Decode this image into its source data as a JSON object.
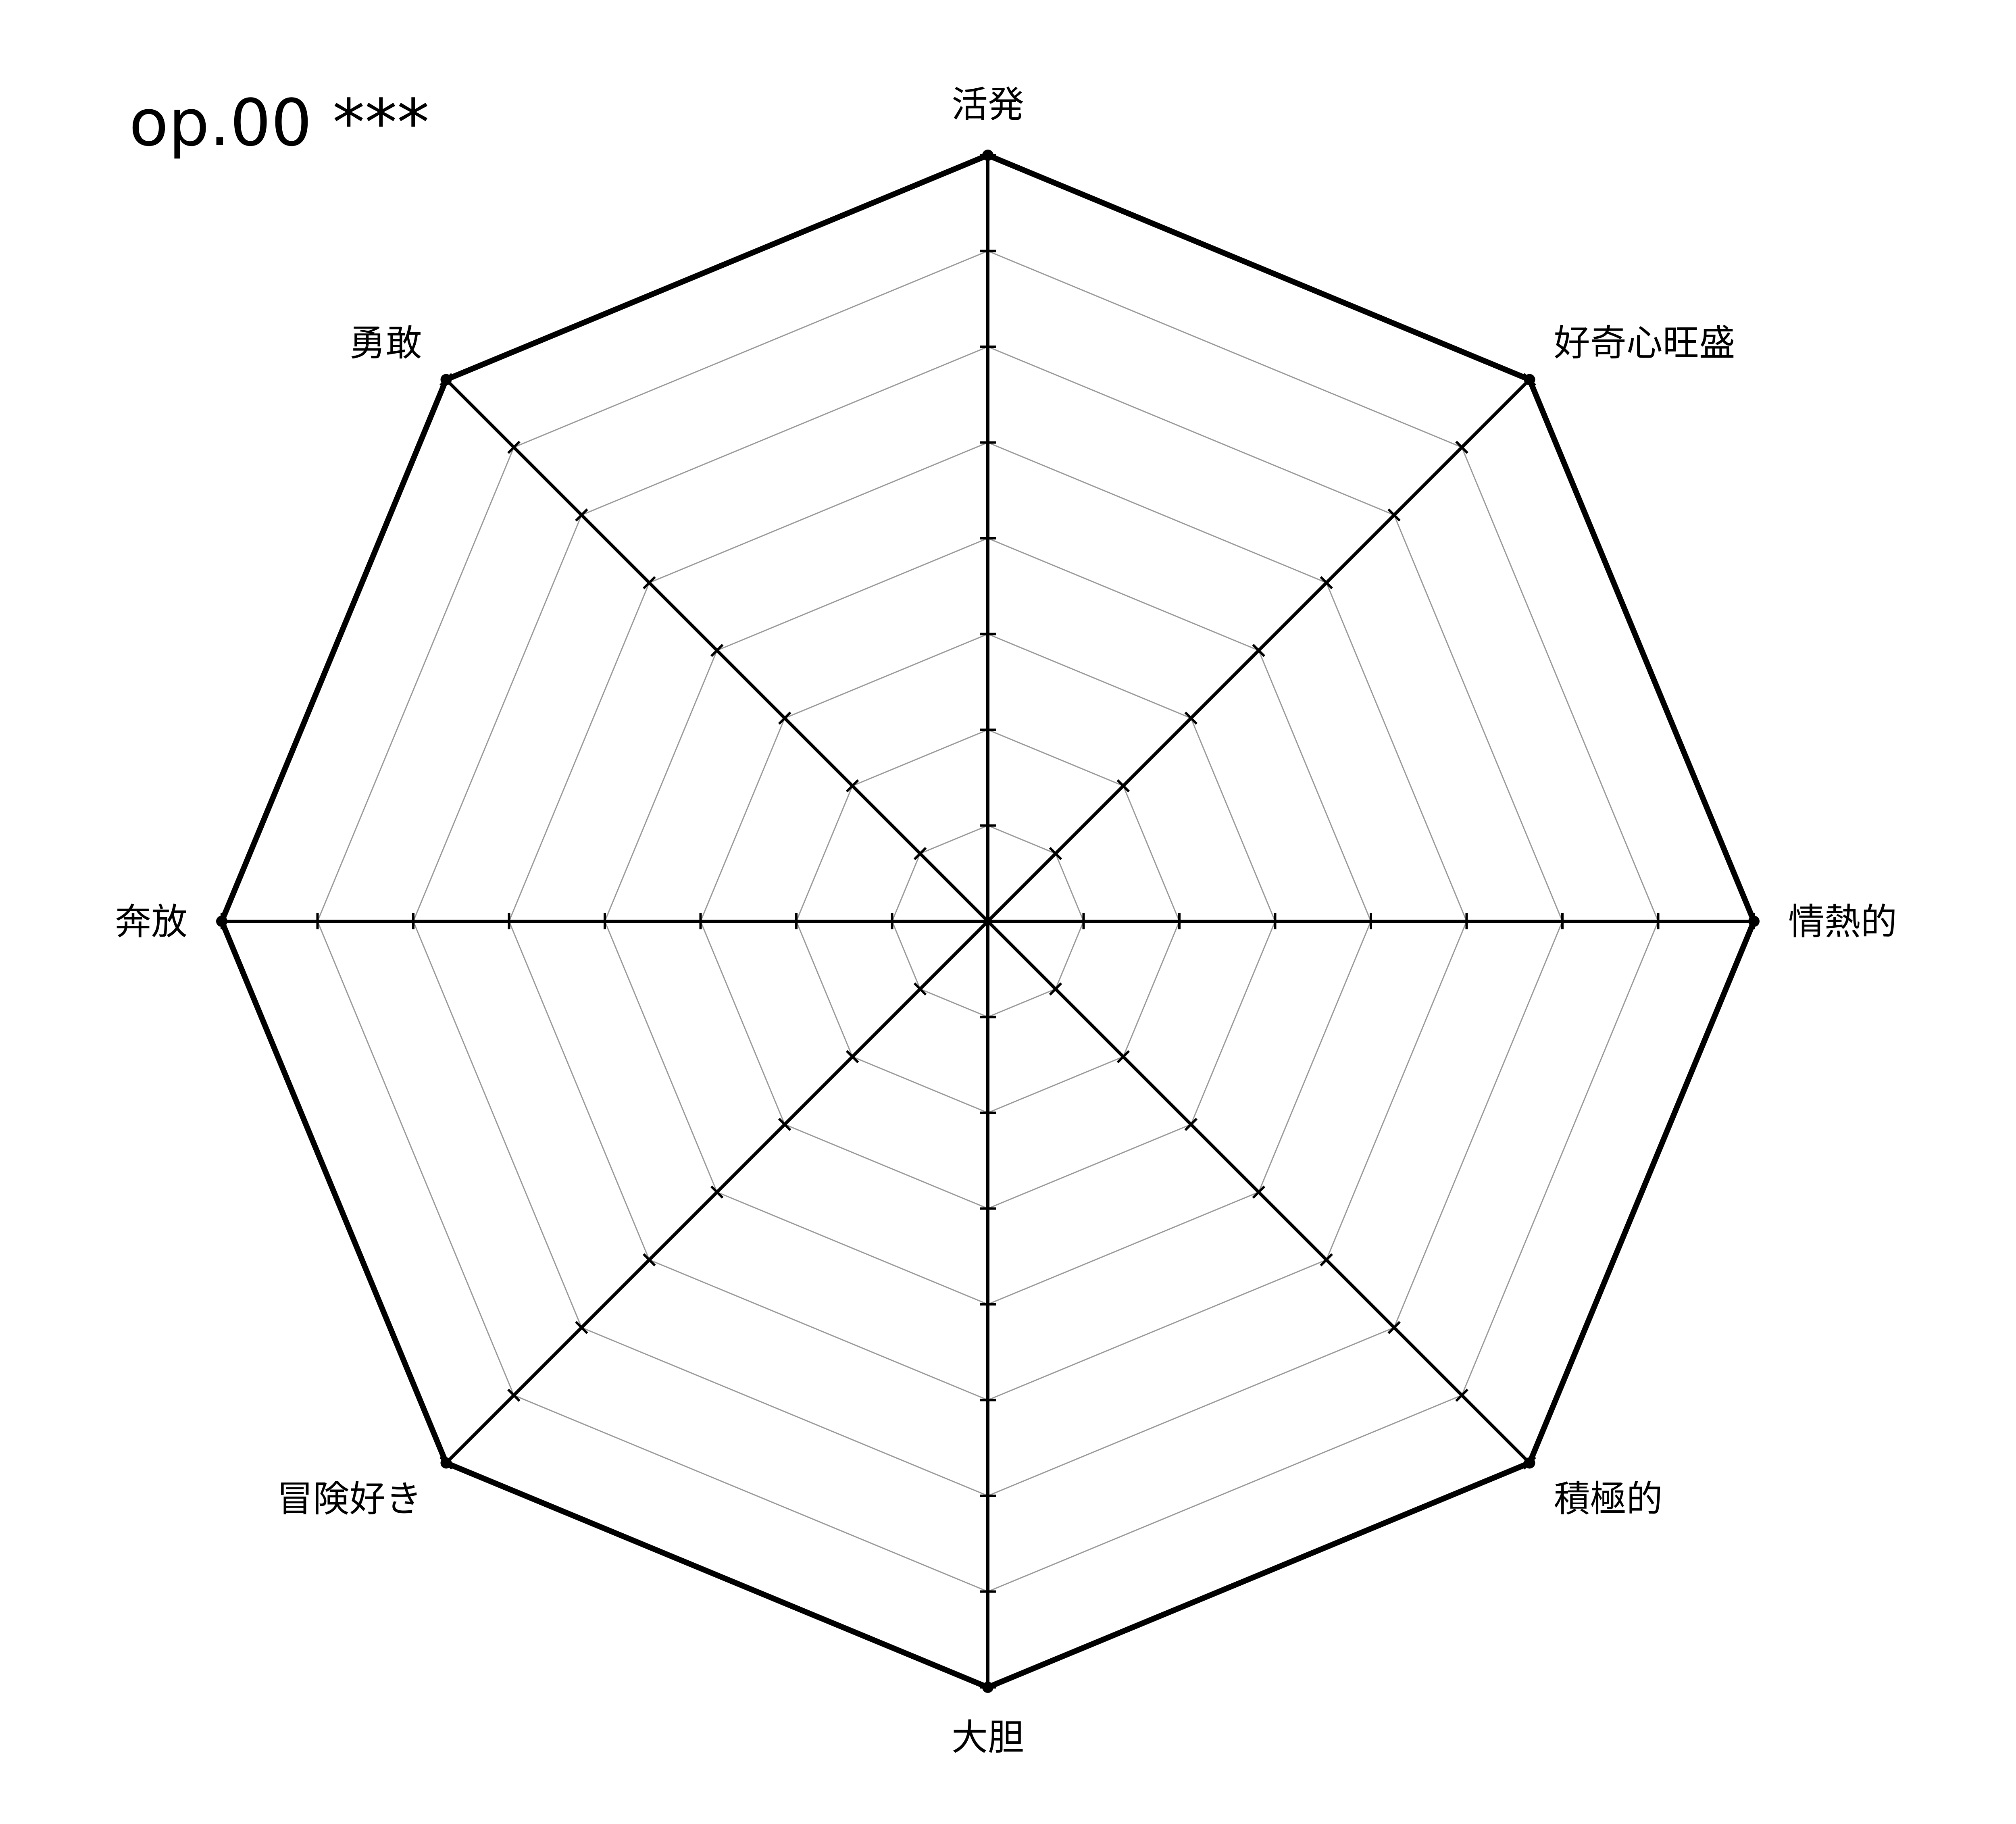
{
  "chart_data": {
    "type": "radar",
    "title": "op.00 ***",
    "categories": [
      "活発",
      "好奇心旺盛",
      "情熱的",
      "積極的",
      "大胆",
      "冒険好き",
      "奔放",
      "勇敢"
    ],
    "series": [
      {
        "values": [
          8,
          8,
          8,
          8,
          8,
          8,
          8,
          8
        ]
      }
    ],
    "rlim": [
      0,
      8
    ],
    "grid_rings": [
      1,
      2,
      3,
      4,
      5,
      6,
      7
    ],
    "grid": true,
    "colors": {
      "series_line": "#000000",
      "axis": "#000000",
      "grid": "#999999"
    }
  }
}
